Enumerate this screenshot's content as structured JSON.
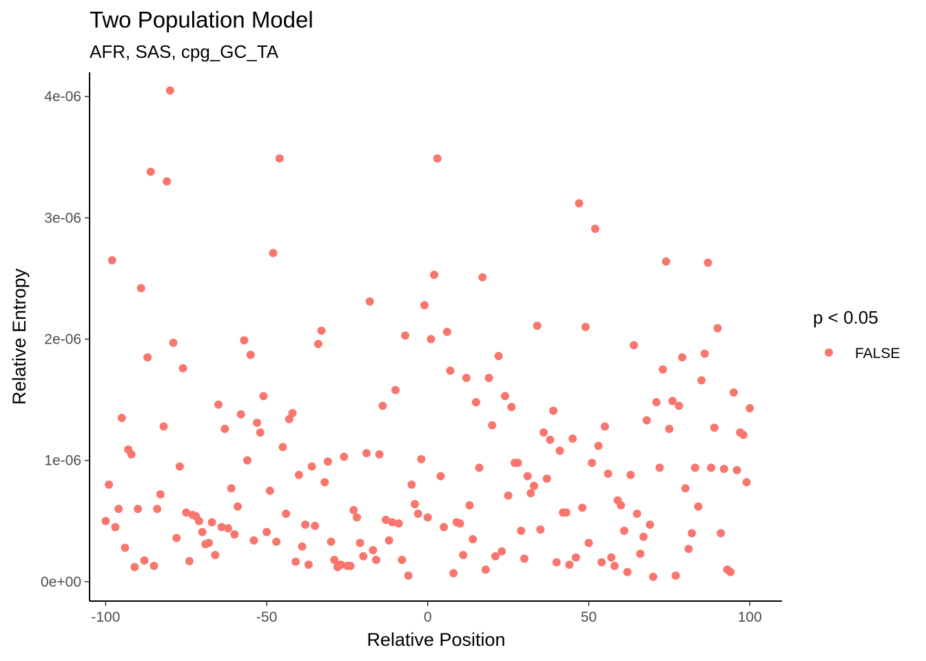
{
  "chart_data": {
    "type": "scatter",
    "title": "Two Population Model",
    "subtitle": "AFR, SAS, cpg_GC_TA",
    "xlabel": "Relative Position",
    "ylabel": "Relative Entropy",
    "xlim": [
      -105,
      110
    ],
    "ylim": [
      -1.6e-07,
      4.2e-06
    ],
    "x_ticks": [
      -100,
      -50,
      0,
      50,
      100
    ],
    "x_tick_labels": [
      "-100",
      "-50",
      "0",
      "50",
      "100"
    ],
    "y_ticks": [
      0,
      1e-06,
      2e-06,
      3e-06,
      4e-06
    ],
    "y_tick_labels": [
      "0e+00",
      "1e-06",
      "2e-06",
      "3e-06",
      "4e-06"
    ],
    "grid": false,
    "legend": {
      "title": "p < 0.05",
      "placement": "right",
      "entries": [
        {
          "label": "FALSE",
          "color": "#F8766D"
        }
      ]
    },
    "series": [
      {
        "name": "FALSE",
        "color": "#F8766D",
        "x": [
          -100,
          -99,
          -98,
          -97,
          -96,
          -95,
          -94,
          -93,
          -92,
          -91,
          -90,
          -89,
          -88,
          -87,
          -86,
          -85,
          -84,
          -83,
          -82,
          -81,
          -80,
          -79,
          -78,
          -77,
          -76,
          -75,
          -74,
          -73,
          -72,
          -71,
          -70,
          -69,
          -68,
          -67,
          -66,
          -65,
          -64,
          -63,
          -62,
          -61,
          -60,
          -59,
          -58,
          -57,
          -56,
          -55,
          -54,
          -53,
          -52,
          -51,
          -50,
          -49,
          -48,
          -47,
          -46,
          -45,
          -44,
          -43,
          -42,
          -41,
          -40,
          -39,
          -38,
          -37,
          -36,
          -35,
          -34,
          -33,
          -32,
          -31,
          -30,
          -29,
          -28,
          -27,
          -26,
          -25,
          -24,
          -23,
          -22,
          -21,
          -20,
          -19,
          -18,
          -17,
          -16,
          -15,
          -14,
          -13,
          -12,
          -11,
          -10,
          -9,
          -8,
          -7,
          -6,
          -5,
          -4,
          -3,
          -2,
          -1,
          0,
          1,
          2,
          3,
          4,
          5,
          6,
          7,
          8,
          9,
          10,
          11,
          12,
          13,
          14,
          15,
          16,
          17,
          18,
          19,
          20,
          21,
          22,
          23,
          24,
          25,
          26,
          27,
          28,
          29,
          30,
          31,
          32,
          33,
          34,
          35,
          36,
          37,
          38,
          39,
          40,
          41,
          42,
          43,
          44,
          45,
          46,
          47,
          48,
          49,
          50,
          51,
          52,
          53,
          54,
          55,
          56,
          57,
          58,
          59,
          60,
          61,
          62,
          63,
          64,
          65,
          66,
          67,
          68,
          69,
          70,
          71,
          72,
          73,
          74,
          75,
          76,
          77,
          78,
          79,
          80,
          81,
          82,
          83,
          84,
          85,
          86,
          87,
          88,
          89,
          90,
          91,
          92,
          93,
          94,
          95,
          96,
          97,
          98,
          99,
          100
        ],
        "y": [
          5e-07,
          8e-07,
          2.65e-06,
          4.5e-07,
          6e-07,
          1.35e-06,
          2.8e-07,
          1.09e-06,
          1.05e-06,
          1.2e-07,
          6e-07,
          2.42e-06,
          1.75e-07,
          1.85e-06,
          3.38e-06,
          1.3e-07,
          6e-07,
          7.2e-07,
          1.28e-06,
          3.3e-06,
          4.05e-06,
          1.97e-06,
          3.6e-07,
          9.5e-07,
          1.76e-06,
          5.7e-07,
          1.7e-07,
          5.5e-07,
          5.4e-07,
          5e-07,
          4.1e-07,
          3.1e-07,
          3.2e-07,
          4.9e-07,
          2.2e-07,
          1.46e-06,
          4.5e-07,
          1.26e-06,
          4.4e-07,
          7.7e-07,
          3.9e-07,
          6.2e-07,
          1.38e-06,
          1.99e-06,
          1e-06,
          1.87e-06,
          3.4e-07,
          1.31e-06,
          1.23e-06,
          1.53e-06,
          4.1e-07,
          7.5e-07,
          2.71e-06,
          3.3e-07,
          3.49e-06,
          1.11e-06,
          5.6e-07,
          1.34e-06,
          1.39e-06,
          1.65e-07,
          8.8e-07,
          2.9e-07,
          4.7e-07,
          1.4e-07,
          9.5e-07,
          4.6e-07,
          1.96e-06,
          2.07e-06,
          8.2e-07,
          9.9e-07,
          3.3e-07,
          1.8e-07,
          1.2e-07,
          1.4e-07,
          1.03e-06,
          1.3e-07,
          1.3e-07,
          5.9e-07,
          5.3e-07,
          3.2e-07,
          2.1e-07,
          1.06e-06,
          2.31e-06,
          2.6e-07,
          1.8e-07,
          1.05e-06,
          1.45e-06,
          5.1e-07,
          3.4e-07,
          4.9e-07,
          1.58e-06,
          4.8e-07,
          1.8e-07,
          2.03e-06,
          5e-08,
          8e-07,
          6.4e-07,
          5.6e-07,
          1.01e-06,
          2.28e-06,
          5.3e-07,
          2e-06,
          2.53e-06,
          3.49e-06,
          8.7e-07,
          4.5e-07,
          2.06e-06,
          1.74e-06,
          7e-08,
          4.9e-07,
          4.8e-07,
          2.2e-07,
          1.68e-06,
          6.3e-07,
          3.5e-07,
          1.48e-06,
          9.4e-07,
          2.51e-06,
          1e-07,
          1.68e-06,
          1.29e-06,
          2.1e-07,
          1.86e-06,
          2.5e-07,
          1.53e-06,
          7.1e-07,
          1.44e-06,
          9.8e-07,
          9.8e-07,
          4.2e-07,
          1.9e-07,
          8.7e-07,
          7.3e-07,
          7.9e-07,
          2.11e-06,
          4.3e-07,
          1.23e-06,
          8.5e-07,
          1.17e-06,
          1.41e-06,
          1.6e-07,
          1.08e-06,
          5.7e-07,
          5.7e-07,
          1.4e-07,
          1.18e-06,
          2e-07,
          3.12e-06,
          6.1e-07,
          2.1e-06,
          3.2e-07,
          9.8e-07,
          2.91e-06,
          1.12e-06,
          1.6e-07,
          1.28e-06,
          8.9e-07,
          2e-07,
          1.3e-07,
          6.7e-07,
          6.3e-07,
          4.2e-07,
          8e-08,
          8.8e-07,
          1.95e-06,
          5.6e-07,
          2.3e-07,
          3.7e-07,
          1.33e-06,
          4.7e-07,
          4e-08,
          1.48e-06,
          9.4e-07,
          1.75e-06,
          2.64e-06,
          1.26e-06,
          1.49e-06,
          5e-08,
          1.45e-06,
          1.85e-06,
          7.7e-07,
          2.7e-07,
          4e-07,
          9.4e-07,
          6.2e-07,
          1.66e-06,
          1.88e-06,
          2.63e-06,
          9.4e-07,
          1.27e-06,
          2.09e-06,
          4e-07,
          9.3e-07,
          1e-07,
          8e-08,
          1.56e-06,
          9.2e-07,
          1.23e-06,
          1.21e-06,
          8.2e-07,
          1.43e-06
        ]
      }
    ]
  }
}
